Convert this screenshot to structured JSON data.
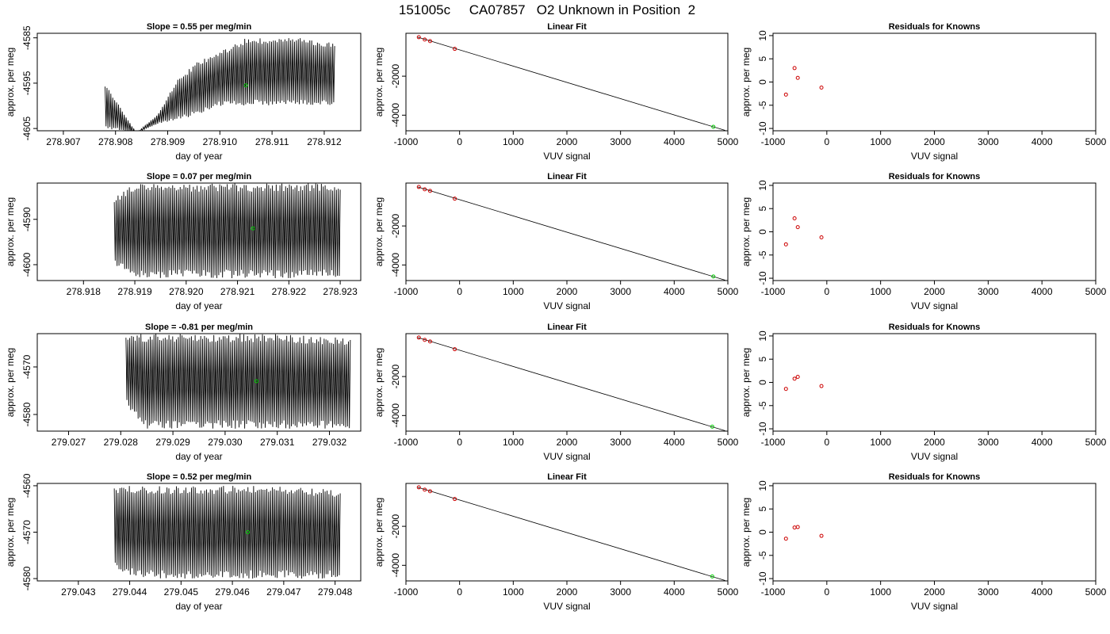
{
  "figure_title": "151005c     CA07857   O2 Unknown in Position  2",
  "colors": {
    "trace": "#000000",
    "known_points": "#cc0000",
    "unknown_point": "#00cc00",
    "axes": "#000000",
    "background": "#ffffff"
  },
  "chart_data": [
    {
      "type": "line",
      "row": 1,
      "title": "Slope =  0.55  per meg/min",
      "xlabel": "day of year",
      "ylabel": "approx. per meg",
      "xlim": [
        278.9065,
        278.9127
      ],
      "ylim": [
        -4605.5,
        -4584
      ],
      "x_ticks": [
        "278.907",
        "278.908",
        "278.909",
        "278.910",
        "278.911",
        "278.912"
      ],
      "y_ticks": [
        "-4585",
        "-4595",
        "-4605"
      ],
      "x_range": [
        278.9078,
        278.9122
      ],
      "envelope": [
        [
          278.9078,
          -4605,
          -4595
        ],
        [
          278.9084,
          -4606,
          -4606
        ],
        [
          278.9088,
          -4604,
          -4602
        ],
        [
          278.9092,
          -4603,
          -4594
        ],
        [
          278.9096,
          -4602,
          -4590
        ],
        [
          278.91,
          -4600,
          -4588
        ],
        [
          278.9105,
          -4600,
          -4585
        ],
        [
          278.911,
          -4600,
          -4585
        ],
        [
          278.9115,
          -4600,
          -4585
        ],
        [
          278.9122,
          -4600,
          -4586
        ]
      ],
      "marker": {
        "x": 278.9105,
        "y": -4595.5
      }
    },
    {
      "type": "line",
      "row": 2,
      "title": "Slope =  0.07  per meg/min",
      "xlabel": "day of year",
      "ylabel": "approx. per meg",
      "xlim": [
        278.9171,
        278.9234
      ],
      "ylim": [
        -4603.5,
        -4582
      ],
      "x_ticks": [
        "278.918",
        "278.919",
        "278.920",
        "278.921",
        "278.922",
        "278.923"
      ],
      "y_ticks": [
        "-4590",
        "-4600"
      ],
      "x_range": [
        278.9186,
        278.923
      ],
      "envelope": [
        [
          278.9186,
          -4600,
          -4585
        ],
        [
          278.919,
          -4603,
          -4582
        ],
        [
          278.92,
          -4603,
          -4582
        ],
        [
          278.921,
          -4603,
          -4582
        ],
        [
          278.922,
          -4603,
          -4582
        ],
        [
          278.923,
          -4603,
          -4582
        ]
      ],
      "marker": {
        "x": 278.9213,
        "y": -4592
      }
    },
    {
      "type": "line",
      "row": 3,
      "title": "Slope =  -0.81  per meg/min",
      "xlabel": "day of year",
      "ylabel": "approx. per meg",
      "xlim": [
        279.0264,
        279.0326
      ],
      "ylim": [
        -4583.5,
        -4563
      ],
      "x_ticks": [
        "279.027",
        "279.028",
        "279.029",
        "279.030",
        "279.031",
        "279.032"
      ],
      "y_ticks": [
        "-4570",
        "-4580"
      ],
      "x_range": [
        279.0281,
        279.0324
      ],
      "envelope": [
        [
          279.0281,
          -4578,
          -4563
        ],
        [
          279.0285,
          -4583,
          -4563
        ],
        [
          279.029,
          -4583,
          -4563
        ],
        [
          279.03,
          -4583,
          -4563
        ],
        [
          279.031,
          -4583,
          -4563
        ],
        [
          279.0324,
          -4583,
          -4564
        ]
      ],
      "marker": {
        "x": 279.0306,
        "y": -4573
      }
    },
    {
      "type": "line",
      "row": 4,
      "title": "Slope =  0.52  per meg/min",
      "xlabel": "day of year",
      "ylabel": "approx. per meg",
      "xlim": [
        279.0422,
        279.0485
      ],
      "ylim": [
        -4580.5,
        -4559.5
      ],
      "x_ticks": [
        "279.043",
        "279.044",
        "279.045",
        "279.046",
        "279.047",
        "279.048"
      ],
      "y_ticks": [
        "-4560",
        "-4570",
        "-4580"
      ],
      "x_range": [
        279.0437,
        279.0481
      ],
      "envelope": [
        [
          279.0437,
          -4578,
          -4560
        ],
        [
          279.0442,
          -4580,
          -4560
        ],
        [
          279.045,
          -4580,
          -4560
        ],
        [
          279.046,
          -4580,
          -4560
        ],
        [
          279.047,
          -4580,
          -4560
        ],
        [
          279.0481,
          -4580,
          -4561
        ]
      ],
      "marker": {
        "x": 279.0463,
        "y": -4570
      }
    },
    {
      "type": "scatter",
      "row": 1,
      "title": "Linear Fit",
      "xlabel": "VUV signal",
      "ylabel": "approx. per meg",
      "xlim": [
        -1000,
        5000
      ],
      "ylim": [
        -4800,
        200
      ],
      "x_ticks": [
        "-1000",
        "0",
        "1000",
        "2000",
        "3000",
        "4000",
        "5000"
      ],
      "y_ticks": [
        "-2000",
        "-4000"
      ],
      "fit_line": [
        [
          -780,
          0
        ],
        [
          4950,
          -4780
        ]
      ],
      "knowns": [
        [
          -760,
          0
        ],
        [
          -650,
          -120
        ],
        [
          -550,
          -200
        ],
        [
          -90,
          -600
        ]
      ],
      "unknown": [
        4730,
        -4595
      ]
    },
    {
      "type": "scatter",
      "row": 2,
      "title": "Linear Fit",
      "xlabel": "VUV signal",
      "ylabel": "approx. per meg",
      "xlim": [
        -1000,
        5000
      ],
      "ylim": [
        -4800,
        200
      ],
      "x_ticks": [
        "-1000",
        "0",
        "1000",
        "2000",
        "3000",
        "4000",
        "5000"
      ],
      "y_ticks": [
        "-2000",
        "-4000"
      ],
      "fit_line": [
        [
          -780,
          0
        ],
        [
          4950,
          -4780
        ]
      ],
      "knowns": [
        [
          -760,
          0
        ],
        [
          -650,
          -120
        ],
        [
          -550,
          -200
        ],
        [
          -90,
          -600
        ]
      ],
      "unknown": [
        4730,
        -4592
      ]
    },
    {
      "type": "scatter",
      "row": 3,
      "title": "Linear Fit",
      "xlabel": "VUV signal",
      "ylabel": "approx. per meg",
      "xlim": [
        -1000,
        5000
      ],
      "ylim": [
        -4800,
        200
      ],
      "x_ticks": [
        "-1000",
        "0",
        "1000",
        "2000",
        "3000",
        "4000",
        "5000"
      ],
      "y_ticks": [
        "-2000",
        "-4000"
      ],
      "fit_line": [
        [
          -780,
          0
        ],
        [
          4950,
          -4780
        ]
      ],
      "knowns": [
        [
          -760,
          0
        ],
        [
          -650,
          -120
        ],
        [
          -550,
          -200
        ],
        [
          -90,
          -600
        ]
      ],
      "unknown": [
        4710,
        -4573
      ]
    },
    {
      "type": "scatter",
      "row": 4,
      "title": "Linear Fit",
      "xlabel": "VUV signal",
      "ylabel": "approx. per meg",
      "xlim": [
        -1000,
        5000
      ],
      "ylim": [
        -4800,
        200
      ],
      "x_ticks": [
        "-1000",
        "0",
        "1000",
        "2000",
        "3000",
        "4000",
        "5000"
      ],
      "y_ticks": [
        "-2000",
        "-4000"
      ],
      "fit_line": [
        [
          -780,
          0
        ],
        [
          4950,
          -4780
        ]
      ],
      "knowns": [
        [
          -760,
          0
        ],
        [
          -650,
          -120
        ],
        [
          -550,
          -200
        ],
        [
          -90,
          -600
        ]
      ],
      "unknown": [
        4710,
        -4570
      ]
    },
    {
      "type": "scatter",
      "row": 1,
      "title": "Residuals for Knowns",
      "xlabel": "VUV signal",
      "ylabel": "approx. per meg",
      "xlim": [
        -1000,
        5000
      ],
      "ylim": [
        -10.5,
        10.5
      ],
      "x_ticks": [
        "-1000",
        "0",
        "1000",
        "2000",
        "3000",
        "4000",
        "5000"
      ],
      "y_ticks": [
        "10",
        "5",
        "0",
        "-5",
        "-10"
      ],
      "points": [
        [
          -760,
          -2.7
        ],
        [
          -600,
          3.0
        ],
        [
          -540,
          0.9
        ],
        [
          -100,
          -1.2
        ]
      ]
    },
    {
      "type": "scatter",
      "row": 2,
      "title": "Residuals for Knowns",
      "xlabel": "VUV signal",
      "ylabel": "approx. per meg",
      "xlim": [
        -1000,
        5000
      ],
      "ylim": [
        -10.5,
        10.5
      ],
      "x_ticks": [
        "-1000",
        "0",
        "1000",
        "2000",
        "3000",
        "4000",
        "5000"
      ],
      "y_ticks": [
        "10",
        "5",
        "0",
        "-5",
        "-10"
      ],
      "points": [
        [
          -760,
          -2.7
        ],
        [
          -600,
          2.9
        ],
        [
          -540,
          1.0
        ],
        [
          -100,
          -1.2
        ]
      ]
    },
    {
      "type": "scatter",
      "row": 3,
      "title": "Residuals for Knowns",
      "xlabel": "VUV signal",
      "ylabel": "approx. per meg",
      "xlim": [
        -1000,
        5000
      ],
      "ylim": [
        -10.5,
        10.5
      ],
      "x_ticks": [
        "-1000",
        "0",
        "1000",
        "2000",
        "3000",
        "4000",
        "5000"
      ],
      "y_ticks": [
        "10",
        "5",
        "0",
        "-5",
        "-10"
      ],
      "points": [
        [
          -760,
          -1.4
        ],
        [
          -600,
          0.8
        ],
        [
          -540,
          1.2
        ],
        [
          -100,
          -0.8
        ]
      ]
    },
    {
      "type": "scatter",
      "row": 4,
      "title": "Residuals for Knowns",
      "xlabel": "VUV signal",
      "ylabel": "approx. per meg",
      "xlim": [
        -1000,
        5000
      ],
      "ylim": [
        -10.5,
        10.5
      ],
      "x_ticks": [
        "-1000",
        "0",
        "1000",
        "2000",
        "3000",
        "4000",
        "5000"
      ],
      "y_ticks": [
        "10",
        "5",
        "0",
        "-5",
        "-10"
      ],
      "points": [
        [
          -760,
          -1.4
        ],
        [
          -600,
          1.0
        ],
        [
          -540,
          1.1
        ],
        [
          -100,
          -0.8
        ]
      ]
    }
  ]
}
